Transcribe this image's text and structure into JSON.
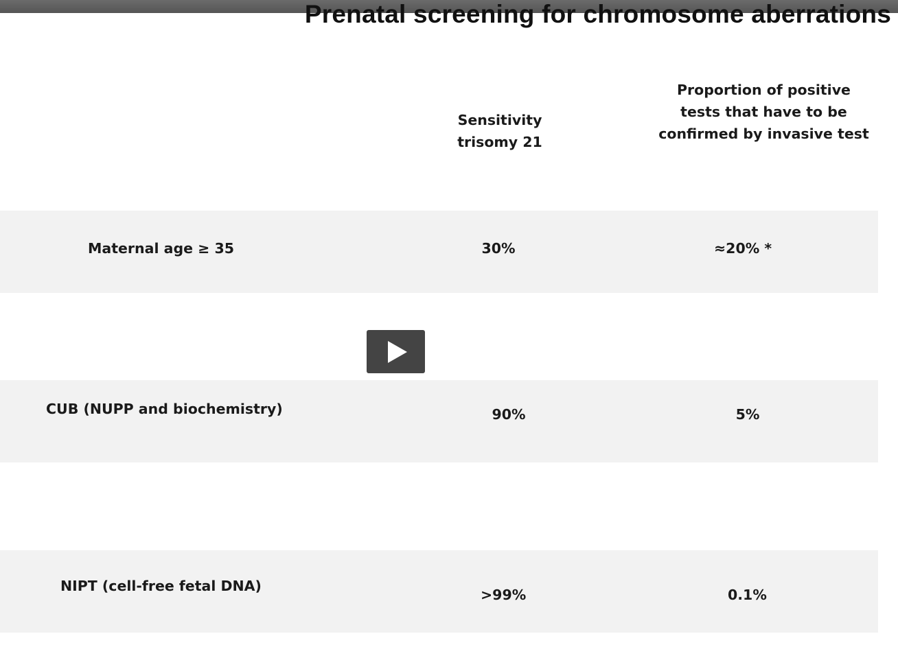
{
  "slide": {
    "title": "Prenatal screening for chromosome aberrations"
  },
  "table": {
    "headers": {
      "sensitivity": "Sensitivity trisomy 21",
      "proportion": "Proportion of positive tests that have to be confirmed by invasive test"
    },
    "rows": [
      {
        "method": "Maternal age ≥ 35",
        "sensitivity": "30%",
        "proportion": "≈20% *"
      },
      {
        "method": "CUB (NUPP and biochemistry)",
        "sensitivity": "90%",
        "proportion": "5%"
      },
      {
        "method": "NIPT (cell-free fetal DNA)",
        "sensitivity": ">99%",
        "proportion": "0.1%"
      }
    ]
  },
  "player": {
    "play_icon": "play-icon"
  },
  "colors": {
    "band": "#f2f2f2",
    "top_bar": "#5e5e5e",
    "play_button": "#444444"
  }
}
